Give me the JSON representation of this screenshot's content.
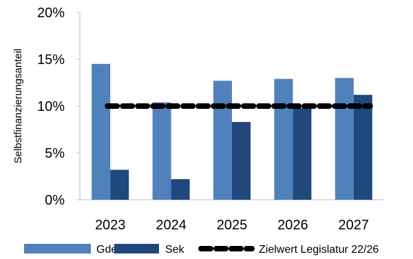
{
  "chart_data": {
    "type": "bar",
    "categories": [
      "2023",
      "2024",
      "2025",
      "2026",
      "2027"
    ],
    "series": [
      {
        "name": "Gde",
        "values": [
          14.5,
          10.4,
          12.7,
          12.9,
          13.0
        ],
        "color": "#4f81bd"
      },
      {
        "name": "Sek",
        "values": [
          3.2,
          2.2,
          8.3,
          9.8,
          11.2
        ],
        "color": "#1f497d"
      }
    ],
    "target_line": {
      "name": "Zielwert Legislatur 22/26",
      "value": 10,
      "color": "#000000",
      "style": "dashed"
    },
    "ylabel": "Selbstfinanzierungsanteil",
    "ylim": [
      0,
      20
    ],
    "yticks": [
      0,
      5,
      10,
      15,
      20
    ],
    "ytick_labels": [
      "0%",
      "5%",
      "10%",
      "15%",
      "20%"
    ],
    "grid": false,
    "legend_position": "bottom"
  }
}
